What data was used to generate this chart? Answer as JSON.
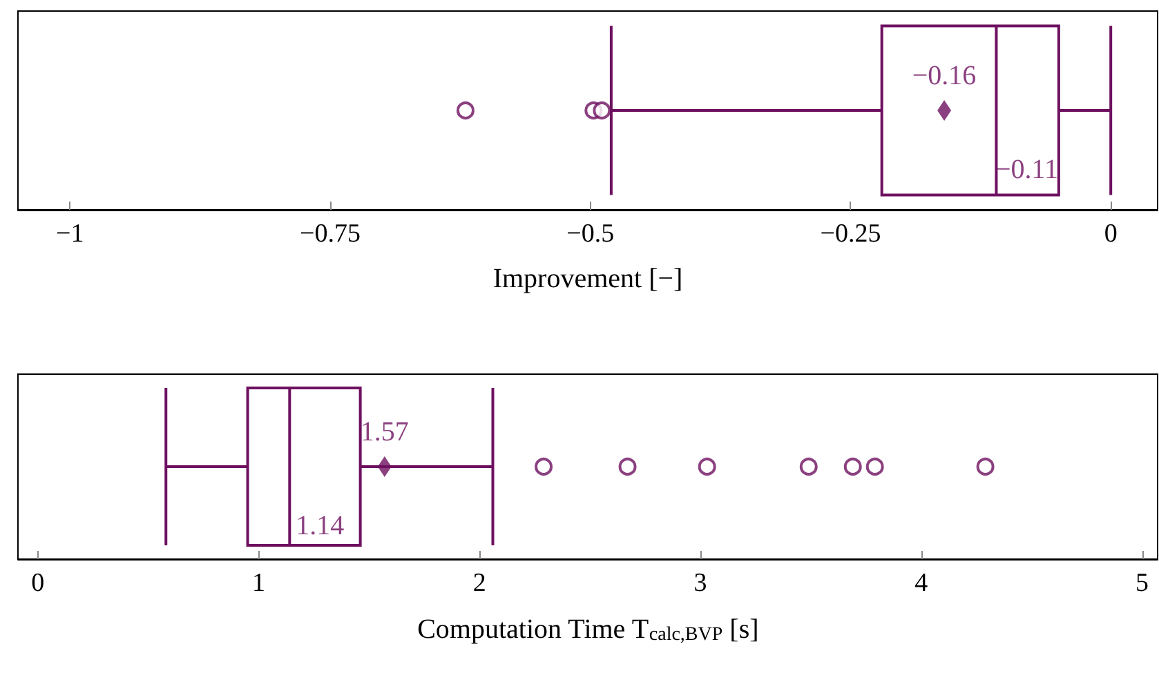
{
  "chart_data": [
    {
      "type": "box",
      "orientation": "horizontal",
      "xlabel": "Improvement [−]",
      "categories": [
        null
      ],
      "color": "#6e1060",
      "boxes": [
        {
          "low": -0.48,
          "q1": -0.22,
          "median": -0.11,
          "q3": -0.05,
          "high": 0,
          "mean": -0.16,
          "outliers": [
            -0.62,
            -0.497,
            -0.489
          ]
        }
      ],
      "annotations": [
        "−0.16",
        "−0.11"
      ],
      "xlim": [
        -1.05,
        0.045
      ],
      "xticks": [
        -1,
        -0.75,
        -0.5,
        -0.25,
        0
      ],
      "tick_labels": "x",
      "grid": false,
      "marker": "circle"
    },
    {
      "type": "box",
      "orientation": "horizontal",
      "xlabel": "Computation Time T$_{calc,BVP}$ [s]",
      "categories": [
        null
      ],
      "color": "#6e1060",
      "boxes": [
        {
          "low": 0.58,
          "q1": 0.95,
          "median": 1.14,
          "q3": 1.46,
          "high": 2.06,
          "mean": 1.57,
          "outliers": [
            2.29,
            2.67,
            3.03,
            3.49,
            3.69,
            3.79,
            4.29
          ]
        }
      ],
      "annotations": [
        "1.57",
        "1.14"
      ],
      "xlim": [
        -0.09,
        5.07
      ],
      "xticks": [
        0,
        1,
        2,
        3,
        4,
        5
      ],
      "tick_labels": "x",
      "grid": false,
      "marker": "circle"
    }
  ]
}
